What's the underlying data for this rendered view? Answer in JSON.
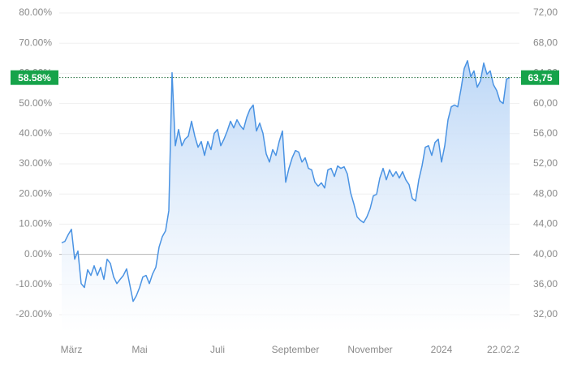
{
  "chart_data": {
    "type": "line",
    "color": "#4a93e3",
    "fill_color": "#b9d5f6",
    "categories": [
      null,
      null,
      null,
      "März",
      null,
      null,
      null,
      null,
      null,
      null,
      null,
      null,
      null,
      null,
      null,
      null,
      null,
      null,
      null,
      null,
      null,
      null,
      null,
      null,
      "Mai",
      null,
      null,
      null,
      null,
      null,
      null,
      null,
      null,
      null,
      null,
      null,
      null,
      null,
      null,
      null,
      null,
      null,
      null,
      null,
      null,
      null,
      null,
      null,
      "Juli",
      null,
      null,
      null,
      null,
      null,
      null,
      null,
      null,
      null,
      null,
      null,
      null,
      null,
      null,
      null,
      null,
      null,
      null,
      null,
      null,
      null,
      null,
      null,
      "September",
      null,
      null,
      null,
      null,
      null,
      null,
      null,
      null,
      null,
      null,
      null,
      null,
      null,
      null,
      null,
      null,
      null,
      null,
      null,
      null,
      null,
      null,
      "November",
      null,
      null,
      null,
      null,
      null,
      null,
      null,
      null,
      null,
      null,
      null,
      null,
      null,
      null,
      null,
      null,
      null,
      null,
      null,
      null,
      null,
      "2024",
      null,
      null,
      null,
      null,
      null,
      null,
      null,
      null,
      null,
      null,
      null,
      null,
      null,
      null,
      null,
      null,
      null,
      null,
      "22.02.2",
      null,
      null
    ],
    "values": [
      3.8,
      4.3,
      6.5,
      8.3,
      -1.6,
      1.1,
      -9.7,
      -11.0,
      -5.1,
      -7.0,
      -3.8,
      -7.0,
      -4.3,
      -8.3,
      -1.6,
      -3.0,
      -7.5,
      -9.7,
      -8.3,
      -7.0,
      -4.8,
      -10.2,
      -15.6,
      -13.7,
      -11.0,
      -7.5,
      -7.0,
      -9.7,
      -6.5,
      -4.3,
      2.4,
      5.9,
      7.8,
      14.5,
      60.2,
      36.0,
      41.4,
      36.0,
      38.2,
      39.2,
      44.1,
      39.2,
      35.5,
      37.4,
      32.8,
      37.4,
      34.7,
      40.1,
      41.4,
      36.0,
      38.2,
      40.9,
      44.1,
      41.9,
      44.6,
      42.7,
      41.4,
      45.4,
      48.1,
      49.5,
      40.9,
      43.5,
      40.1,
      33.3,
      30.6,
      34.7,
      32.8,
      37.4,
      40.9,
      23.9,
      28.5,
      32.0,
      34.4,
      33.9,
      30.6,
      32.0,
      28.5,
      28.0,
      23.9,
      22.6,
      23.7,
      22.0,
      28.0,
      28.5,
      25.8,
      29.3,
      28.5,
      29.0,
      26.6,
      20.4,
      16.7,
      12.4,
      11.3,
      10.5,
      12.4,
      15.1,
      19.4,
      19.9,
      25.3,
      28.5,
      24.7,
      28.0,
      25.8,
      27.4,
      25.3,
      27.4,
      24.7,
      23.1,
      18.5,
      17.7,
      24.7,
      29.3,
      35.5,
      36.0,
      32.8,
      37.1,
      38.2,
      30.6,
      36.0,
      44.6,
      48.9,
      49.5,
      48.9,
      54.8,
      61.6,
      64.2,
      58.9,
      60.8,
      55.4,
      57.5,
      63.4,
      59.7,
      60.8,
      56.2,
      54.3,
      50.8,
      50.0,
      58.1,
      58.58
    ],
    "ylim": [
      -20,
      80
    ],
    "yticks": [
      {
        "value": -20,
        "label": "-20.00%"
      },
      {
        "value": -10,
        "label": "-10.00%"
      },
      {
        "value": 0,
        "label": "0.00%"
      },
      {
        "value": 10,
        "label": "10.00%"
      },
      {
        "value": 20,
        "label": "20.00%"
      },
      {
        "value": 30,
        "label": "30.00%"
      },
      {
        "value": 40,
        "label": "40.00%"
      },
      {
        "value": 50,
        "label": "50.00%"
      },
      {
        "value": 60,
        "label": "60.00%"
      },
      {
        "value": 70,
        "label": "70.00%"
      },
      {
        "value": 80,
        "label": "80.00%"
      }
    ],
    "y2lim": [
      32,
      72
    ],
    "y2ticks": [
      {
        "value": 32,
        "label": "32,00"
      },
      {
        "value": 36,
        "label": "36,00"
      },
      {
        "value": 40,
        "label": "40,00"
      },
      {
        "value": 44,
        "label": "44,00"
      },
      {
        "value": 48,
        "label": "48,00"
      },
      {
        "value": 52,
        "label": "52,00"
      },
      {
        "value": 56,
        "label": "56,00"
      },
      {
        "value": 60,
        "label": "60,00"
      },
      {
        "value": 64,
        "label": "64,00"
      },
      {
        "value": 68,
        "label": "68,00"
      },
      {
        "value": 72,
        "label": "72,00"
      }
    ],
    "grid": true,
    "current_value": {
      "value": 58.58,
      "label": "58.58%"
    },
    "current_price": {
      "value": 63.75,
      "label": "63,75"
    },
    "badge_color": "#16a34a"
  }
}
